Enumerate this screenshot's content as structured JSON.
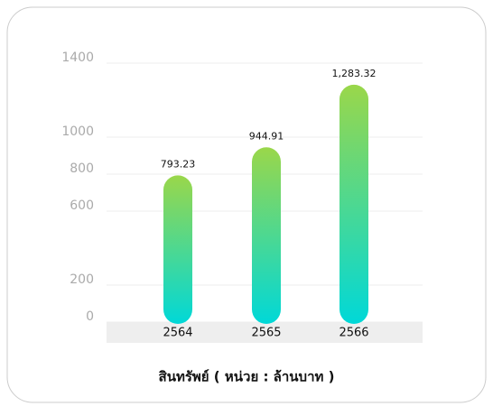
{
  "chart_data": {
    "type": "bar",
    "title": "สินทรัพย์ ( หน่วย : ล้านบาท )",
    "categories": [
      "2564",
      "2565",
      "2566"
    ],
    "values": [
      793.23,
      944.91,
      1283.32
    ],
    "value_labels": [
      "793.23",
      "944.91",
      "1,283.32"
    ],
    "color": [
      "#9ad74a",
      "#00d8d8"
    ],
    "ylim": [
      0,
      1400
    ],
    "yticks": [
      0,
      200,
      600,
      800,
      1000,
      1400
    ],
    "grid": true
  }
}
